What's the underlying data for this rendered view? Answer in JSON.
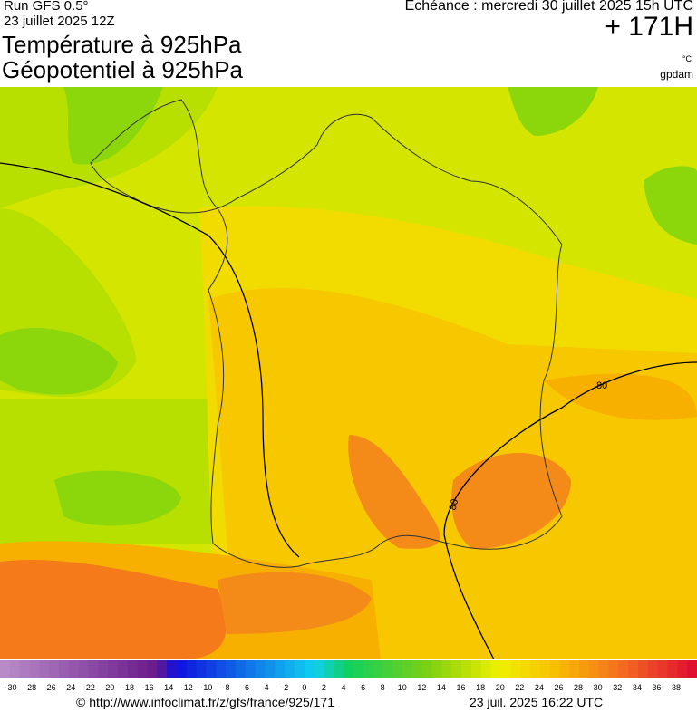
{
  "header": {
    "run": "Run GFS 0.5°",
    "run_date": "23 juillet 2025 12Z",
    "title_1": "Température à 925hPa",
    "title_2": "Géopotentiel à 925hPa",
    "valid": "Echéance : mercredi 30 juillet 2025 15h UTC",
    "lead": "+ 171H",
    "unit": "°C",
    "source": "gpdam"
  },
  "map": {
    "contour_labels": [
      "80",
      "80"
    ]
  },
  "scale": {
    "labels": [
      -30,
      -28,
      -26,
      -24,
      -22,
      -20,
      -18,
      -16,
      -14,
      -12,
      -10,
      -8,
      -6,
      -4,
      -2,
      0,
      2,
      4,
      6,
      8,
      10,
      12,
      14,
      16,
      18,
      20,
      22,
      24,
      26,
      28,
      30,
      32,
      34,
      36,
      38
    ]
  },
  "footer": {
    "url": "© http://www.infoclimat.fr/z/gfs/france/925/171",
    "generated": "23 juil. 2025 16:22 UTC"
  }
}
